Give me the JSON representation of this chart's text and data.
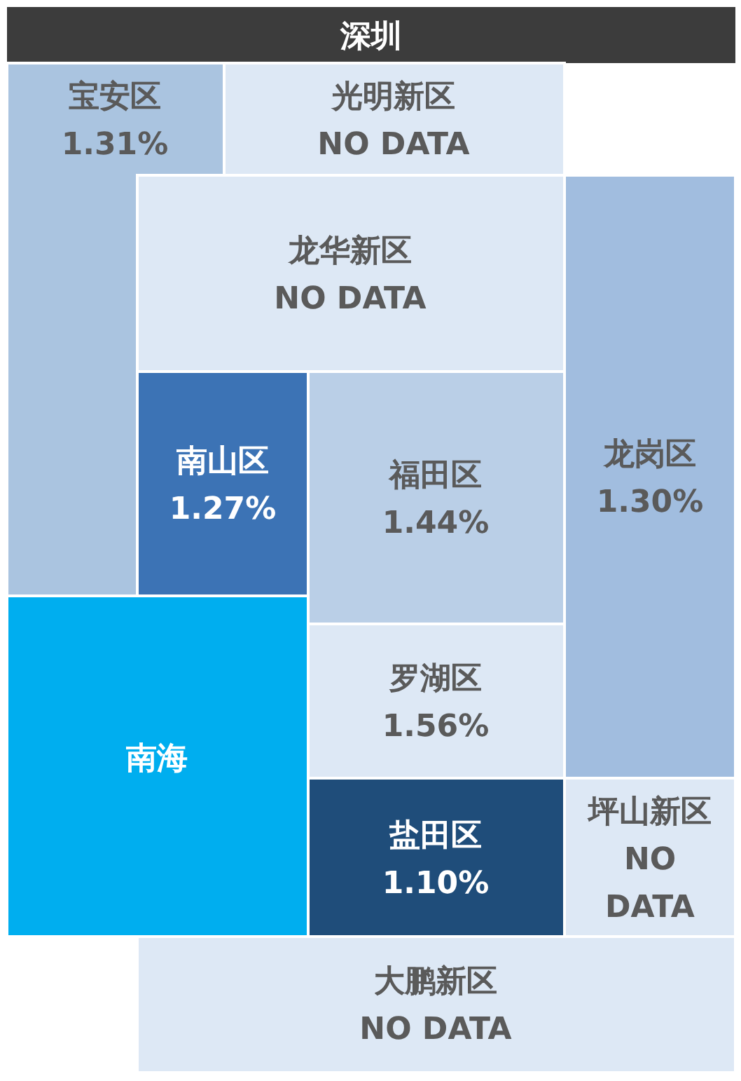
{
  "chart_data": {
    "type": "other",
    "title": "深圳",
    "categories": [
      "宝安区",
      "光明新区",
      "龙华新区",
      "南山区",
      "福田区",
      "龙岗区",
      "南海",
      "罗湖区",
      "盐田区",
      "坪山新区",
      "大鹏新区"
    ],
    "values": [
      1.31,
      null,
      null,
      1.27,
      1.44,
      1.3,
      null,
      1.56,
      1.1,
      null,
      null
    ],
    "value_labels": [
      "1.31%",
      "NO DATA",
      "NO DATA",
      "1.27%",
      "1.44%",
      "1.30%",
      null,
      "1.56%",
      "1.10%",
      "NO\nDATA",
      "NO DATA"
    ],
    "colors": [
      "#b3cde9",
      "#dde8f5",
      "#dde8f5",
      "#3070b8",
      "#bcd2ea",
      "#a9c6e8",
      "#00aeef",
      "#dde8f5",
      "#1f4d7a",
      "#dde8f5",
      "#dde8f5"
    ]
  }
}
